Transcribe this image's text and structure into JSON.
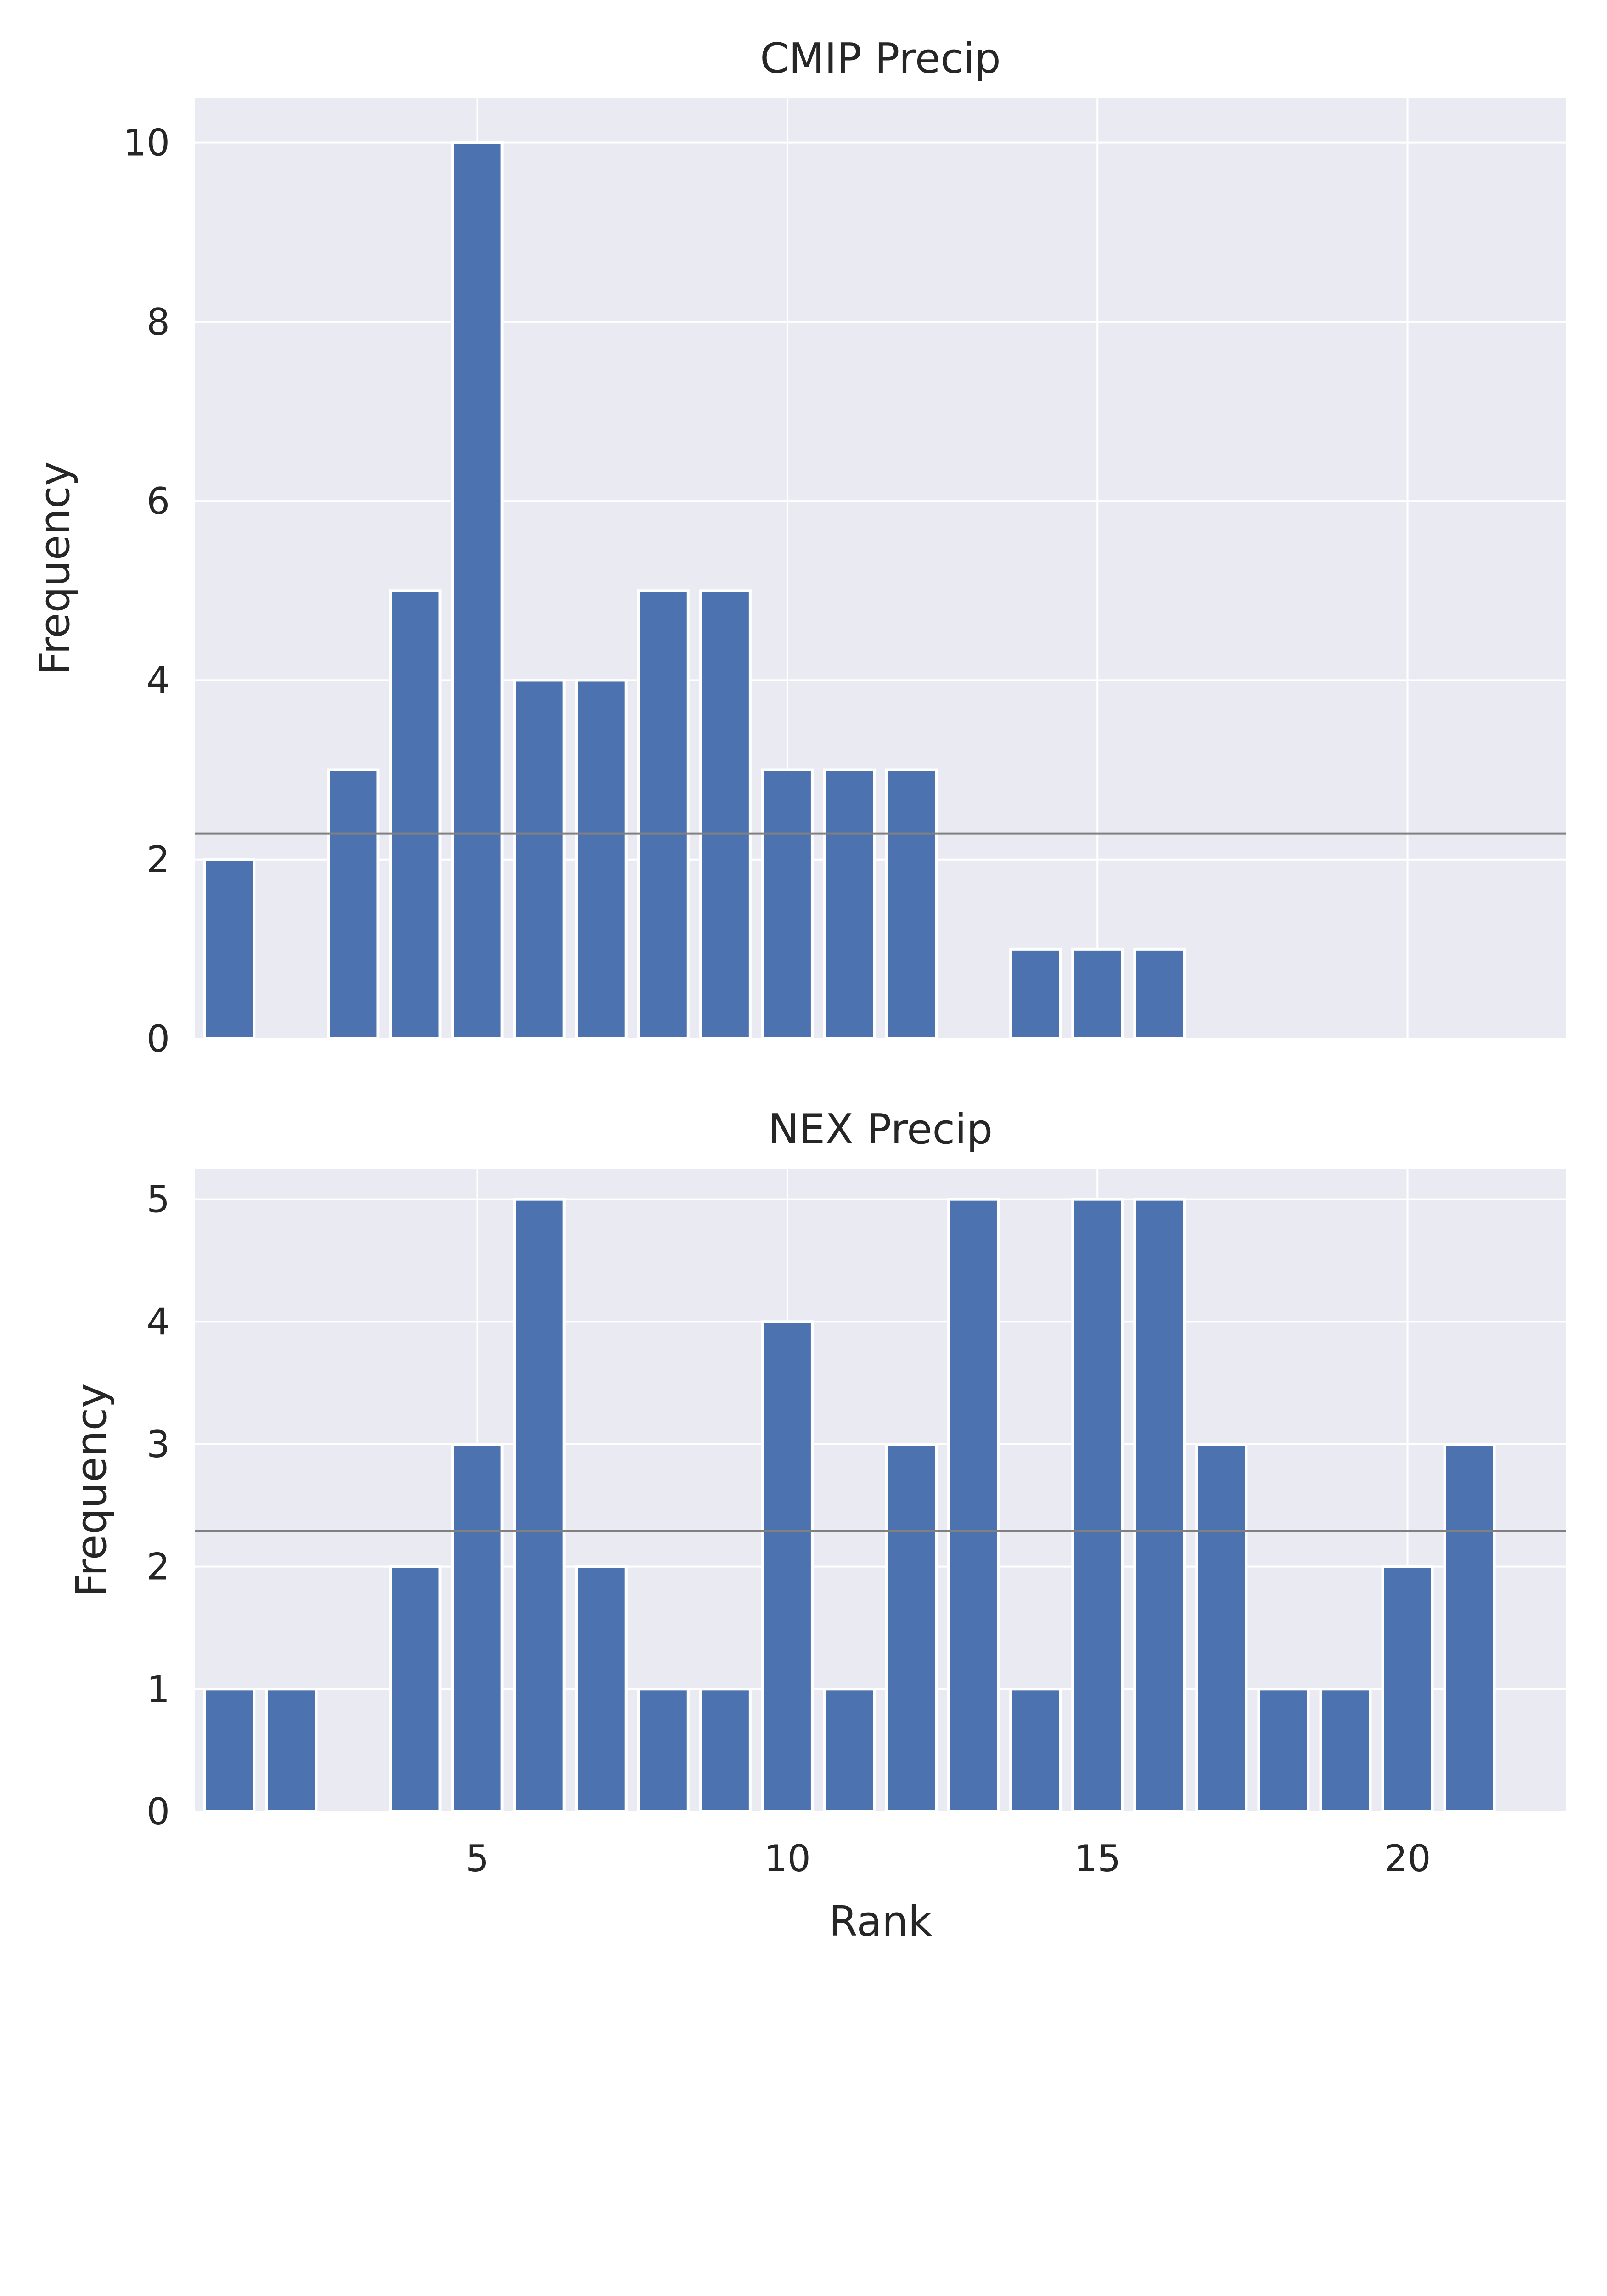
{
  "chart_data": [
    {
      "type": "bar",
      "title": "CMIP Precip",
      "xlabel": "",
      "ylabel": "Frequency",
      "x": [
        1,
        2,
        3,
        4,
        5,
        6,
        7,
        8,
        9,
        10,
        11,
        12,
        13,
        14,
        15,
        16,
        17,
        18,
        19,
        20,
        21
      ],
      "values": [
        2,
        0,
        3,
        5,
        10,
        4,
        4,
        5,
        5,
        3,
        3,
        3,
        0,
        1,
        1,
        1,
        0,
        0,
        0,
        0,
        0
      ],
      "reference_line": 2.29,
      "reference_line_color": "#808080",
      "xlim": [
        0.45,
        22.55
      ],
      "ylim": [
        0,
        10.5
      ],
      "yticks": [
        0,
        2,
        4,
        6,
        8,
        10
      ],
      "xticks": [
        5,
        10,
        15,
        20
      ],
      "bar_color": "#4c72b0",
      "background": "#eaeaf2",
      "grid": true
    },
    {
      "type": "bar",
      "title": "NEX Precip",
      "xlabel": "Rank",
      "ylabel": "Frequency",
      "x": [
        1,
        2,
        3,
        4,
        5,
        6,
        7,
        8,
        9,
        10,
        11,
        12,
        13,
        14,
        15,
        16,
        17,
        18,
        19,
        20,
        21
      ],
      "values": [
        1,
        1,
        0,
        2,
        3,
        5,
        2,
        1,
        1,
        4,
        1,
        3,
        5,
        1,
        5,
        5,
        3,
        1,
        1,
        2,
        3
      ],
      "reference_line": 2.29,
      "reference_line_color": "#808080",
      "xlim": [
        0.45,
        22.55
      ],
      "ylim": [
        0,
        5.25
      ],
      "yticks": [
        0,
        1,
        2,
        3,
        4,
        5
      ],
      "xticks": [
        5,
        10,
        15,
        20
      ],
      "bar_color": "#4c72b0",
      "background": "#eaeaf2",
      "grid": true
    }
  ]
}
